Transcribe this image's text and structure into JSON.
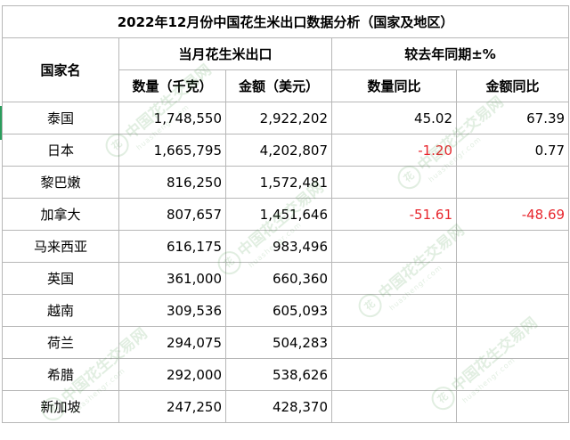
{
  "title": "2022年12月份中国花生米出口数据分析（国家及地区）",
  "headers": {
    "country": "国家名",
    "group_export": "当月花生米出口",
    "group_yoy": "较去年同期±%",
    "qty": "数量（千克）",
    "amount": "金额（美元）",
    "qty_yoy": "数量同比",
    "amount_yoy": "金额同比"
  },
  "rows": [
    {
      "country": "泰国",
      "qty": "1,748,550",
      "amount": "2,922,202",
      "qty_yoy": "45.02",
      "amount_yoy": "67.39"
    },
    {
      "country": "日本",
      "qty": "1,665,795",
      "amount": "4,202,807",
      "qty_yoy": "-1.20",
      "amount_yoy": "0.77"
    },
    {
      "country": "黎巴嫩",
      "qty": "816,250",
      "amount": "1,572,481",
      "qty_yoy": "",
      "amount_yoy": ""
    },
    {
      "country": "加拿大",
      "qty": "807,657",
      "amount": "1,451,646",
      "qty_yoy": "-51.61",
      "amount_yoy": "-48.69"
    },
    {
      "country": "马来西亚",
      "qty": "616,175",
      "amount": "983,496",
      "qty_yoy": "",
      "amount_yoy": ""
    },
    {
      "country": "英国",
      "qty": "361,000",
      "amount": "660,360",
      "qty_yoy": "",
      "amount_yoy": ""
    },
    {
      "country": "越南",
      "qty": "309,536",
      "amount": "605,093",
      "qty_yoy": "",
      "amount_yoy": ""
    },
    {
      "country": "荷兰",
      "qty": "294,075",
      "amount": "504,283",
      "qty_yoy": "",
      "amount_yoy": ""
    },
    {
      "country": "希腊",
      "qty": "292,000",
      "amount": "538,626",
      "qty_yoy": "",
      "amount_yoy": ""
    },
    {
      "country": "新加坡",
      "qty": "247,250",
      "amount": "428,370",
      "qty_yoy": "",
      "amount_yoy": ""
    }
  ],
  "watermark": {
    "text": "中国花生交易网",
    "sub": "huashengr.com",
    "seal": "花"
  },
  "colors": {
    "negative": "#e8262d",
    "grid": "#b7b7b7",
    "selection": "#2a9d5c"
  }
}
